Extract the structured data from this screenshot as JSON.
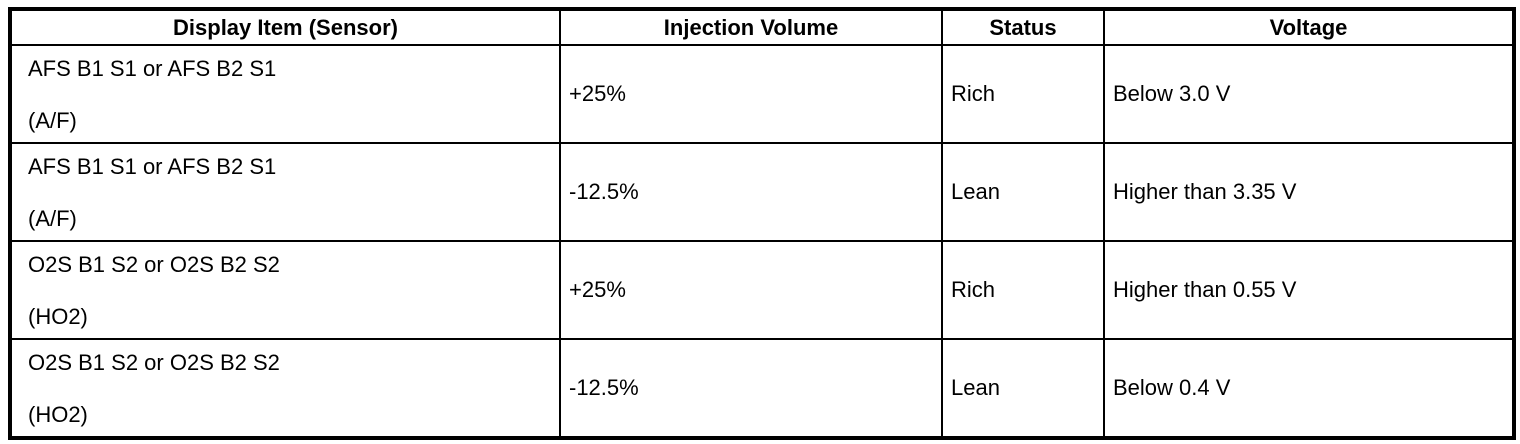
{
  "table": {
    "headers": {
      "sensor": "Display Item (Sensor)",
      "injection_volume": "Injection Volume",
      "status": "Status",
      "voltage": "Voltage"
    },
    "rows": [
      {
        "sensor": "AFS B1 S1 or AFS B2 S1",
        "sensor_code": "(A/F)",
        "injection_volume": "+25%",
        "status": "Rich",
        "voltage": "Below 3.0 V"
      },
      {
        "sensor": "AFS B1 S1 or AFS B2 S1",
        "sensor_code": "(A/F)",
        "injection_volume": "-12.5%",
        "status": "Lean",
        "voltage": "Higher than 3.35 V"
      },
      {
        "sensor": "O2S B1 S2 or O2S B2 S2",
        "sensor_code": "(HO2)",
        "injection_volume": "+25%",
        "status": "Rich",
        "voltage": "Higher than 0.55 V"
      },
      {
        "sensor": "O2S B1 S2 or O2S B2 S2",
        "sensor_code": "(HO2)",
        "injection_volume": "-12.5%",
        "status": "Lean",
        "voltage": "Below 0.4 V"
      }
    ]
  }
}
